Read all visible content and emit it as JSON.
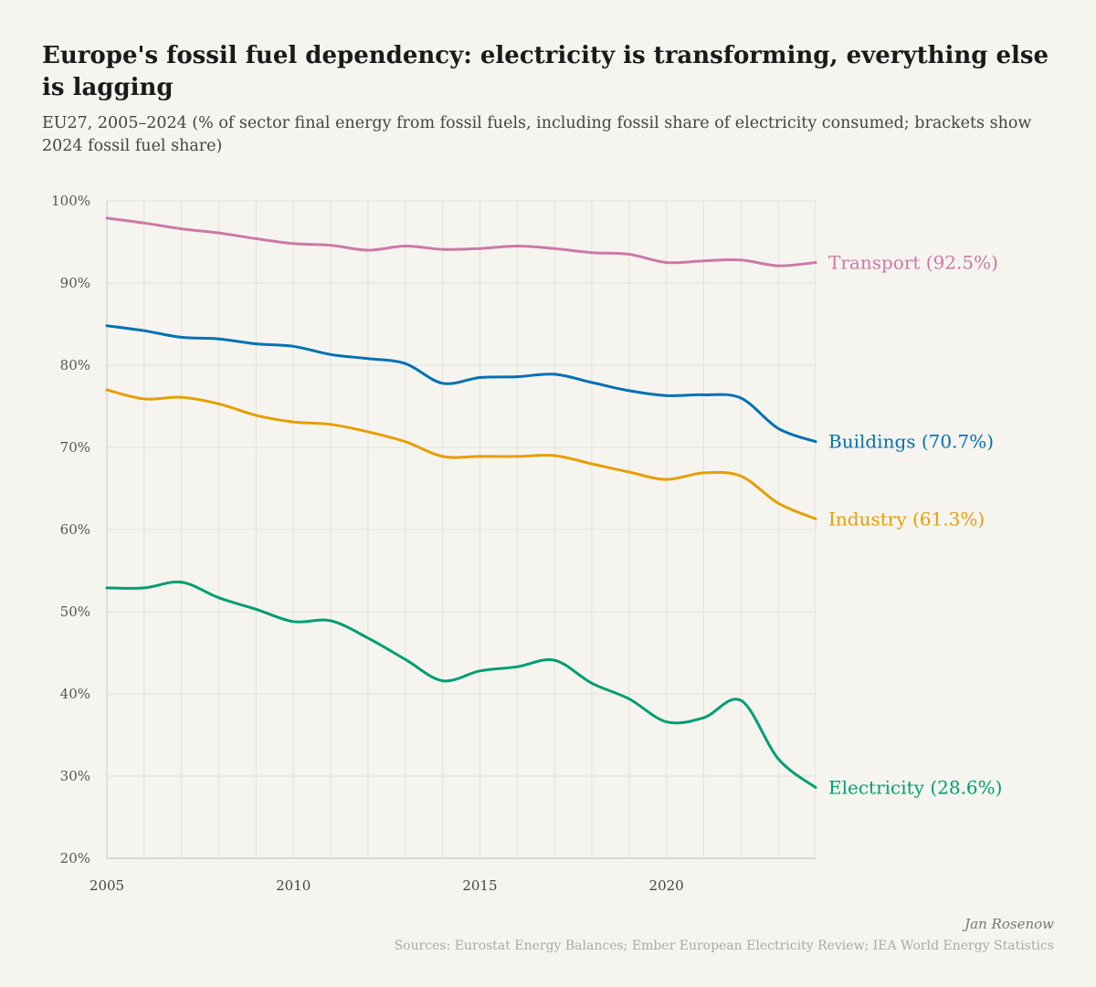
{
  "title": "Europe's fossil fuel dependency: electricity is transforming, everything else is lagging",
  "subtitle": "EU27, 2005–2024 (% of sector final energy from fossil fuels, including fossil share of electricity consumed; brackets show 2024 fossil fuel share)",
  "author": "Jan Rosenow",
  "sources": "Sources: Eurostat Energy Balances; Ember European Electricity Review; IEA World Energy Statistics",
  "chart_data": {
    "type": "line",
    "x": [
      2005,
      2006,
      2007,
      2008,
      2009,
      2010,
      2011,
      2012,
      2013,
      2014,
      2015,
      2016,
      2017,
      2018,
      2019,
      2020,
      2021,
      2022,
      2023,
      2024
    ],
    "xlim": [
      2005,
      2024
    ],
    "ylim": [
      20,
      100
    ],
    "x_ticks": [
      "2005",
      "2010",
      "2015",
      "2020"
    ],
    "x_tick_values": [
      2005,
      2010,
      2015,
      2020
    ],
    "y_ticks": [
      "20%",
      "30%",
      "40%",
      "50%",
      "60%",
      "70%",
      "80%",
      "90%",
      "100%"
    ],
    "y_tick_values": [
      20,
      30,
      40,
      50,
      60,
      70,
      80,
      90,
      100
    ],
    "grid": true,
    "legend": "direct labels at line ends",
    "series": [
      {
        "name": "Transport",
        "label": "Transport (92.5%)",
        "color": "#cc79a7",
        "values": [
          97.9,
          97.3,
          96.6,
          96.1,
          95.4,
          94.8,
          94.6,
          94.0,
          94.5,
          94.1,
          94.2,
          94.5,
          94.2,
          93.7,
          93.5,
          92.5,
          92.7,
          92.8,
          92.1,
          92.5
        ]
      },
      {
        "name": "Buildings",
        "label": "Buildings (70.7%)",
        "color": "#0072b2",
        "values": [
          84.8,
          84.2,
          83.4,
          83.2,
          82.6,
          82.3,
          81.3,
          80.8,
          80.2,
          77.8,
          78.5,
          78.6,
          78.9,
          77.9,
          76.9,
          76.3,
          76.4,
          76.0,
          72.3,
          70.7
        ]
      },
      {
        "name": "Industry",
        "label": "Industry (61.3%)",
        "color": "#e69f00",
        "values": [
          77.0,
          75.9,
          76.1,
          75.3,
          73.9,
          73.1,
          72.8,
          71.9,
          70.7,
          68.9,
          68.9,
          68.9,
          69.0,
          68.0,
          67.0,
          66.1,
          66.9,
          66.5,
          63.2,
          61.3
        ]
      },
      {
        "name": "Electricity",
        "label": "Electricity (28.6%)",
        "color": "#009e73",
        "values": [
          52.9,
          52.9,
          53.6,
          51.7,
          50.3,
          48.8,
          48.9,
          46.8,
          44.2,
          41.6,
          42.8,
          43.3,
          44.1,
          41.3,
          39.4,
          36.6,
          37.1,
          39.2,
          32.1,
          28.6
        ]
      }
    ]
  }
}
